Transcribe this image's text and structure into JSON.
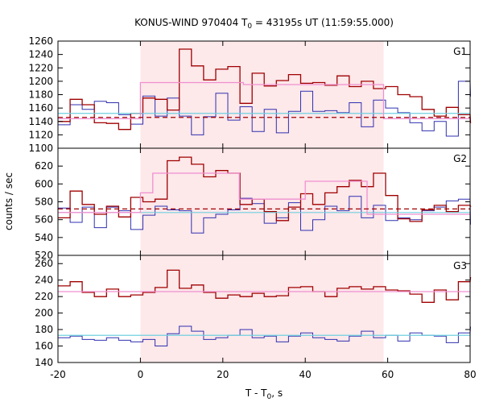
{
  "chart_data": {
    "type": "line",
    "title_main": "KONUS-WIND 970404 T",
    "title_sub": "0",
    "title_rest": " = 43195s UT (11:59:55.000)",
    "xlabel_main": "T - T",
    "xlabel_sub": "0",
    "xlabel_rest": ", s",
    "ylabel": "counts / sec",
    "xlim": [
      -20,
      80
    ],
    "x_ticks": [
      -20,
      0,
      20,
      40,
      60,
      80
    ],
    "x_tick_labels": [
      "-20",
      "0",
      "20",
      "40",
      "60",
      "80"
    ],
    "shaded_interval": [
      0,
      59
    ],
    "colors": {
      "shade": "#fde8ea",
      "red_series": "#a00000",
      "blue_series": "#3030b0",
      "pink_fit": "#f090d0",
      "cyan_fit": "#70d0e0",
      "dashed_bg": "#a00000"
    },
    "bin_start": -20,
    "bin_width": 2.944,
    "panels": [
      {
        "name": "G1",
        "ylim": [
          1100,
          1260
        ],
        "y_ticks": [
          1100,
          1120,
          1140,
          1160,
          1180,
          1200,
          1220,
          1240,
          1260
        ],
        "y_tick_labels": [
          "1100",
          "1120",
          "1140",
          "1160",
          "1180",
          "1200",
          "1220",
          "1240",
          "1260"
        ],
        "red": [
          1140,
          1173,
          1165,
          1138,
          1137,
          1128,
          1152,
          1175,
          1173,
          1157,
          1248,
          1223,
          1202,
          1218,
          1222,
          1167,
          1212,
          1193,
          1201,
          1210,
          1197,
          1198,
          1194,
          1208,
          1192,
          1200,
          1189,
          1192,
          1180,
          1177,
          1158,
          1148,
          1161,
          1150,
          1138
        ],
        "blue": [
          1135,
          1165,
          1158,
          1170,
          1168,
          1150,
          1136,
          1178,
          1148,
          1175,
          1148,
          1120,
          1147,
          1182,
          1142,
          1162,
          1125,
          1158,
          1123,
          1155,
          1185,
          1155,
          1156,
          1153,
          1168,
          1132,
          1172,
          1160,
          1153,
          1138,
          1126,
          1140,
          1118,
          1200,
          1178
        ],
        "pink_segments": [
          [
            -20,
            0,
            1144
          ],
          [
            0,
            25,
            1198
          ],
          [
            25,
            59,
            1195
          ],
          [
            59,
            80,
            1144
          ]
        ],
        "cyan_segments": [
          [
            -20,
            80,
            1152
          ]
        ],
        "dashed_segments": [
          [
            -20,
            80,
            1146
          ]
        ]
      },
      {
        "name": "G2",
        "ylim": [
          520,
          640
        ],
        "y_ticks": [
          520,
          540,
          560,
          580,
          600,
          620
        ],
        "y_tick_labels": [
          "520",
          "540",
          "560",
          "580",
          "600",
          "620"
        ],
        "red": [
          562,
          592,
          577,
          566,
          575,
          563,
          585,
          580,
          583,
          626,
          630,
          622,
          608,
          615,
          612,
          577,
          583,
          569,
          559,
          574,
          589,
          577,
          590,
          597,
          604,
          597,
          612,
          587,
          561,
          558,
          571,
          576,
          569,
          576,
          575
        ],
        "blue": [
          573,
          557,
          574,
          551,
          574,
          570,
          549,
          565,
          575,
          571,
          570,
          545,
          562,
          566,
          571,
          584,
          578,
          556,
          562,
          579,
          548,
          560,
          575,
          570,
          586,
          562,
          576,
          559,
          562,
          560,
          570,
          574,
          581,
          583,
          555
        ],
        "pink_segments": [
          [
            -20,
            0,
            568
          ],
          [
            0,
            3,
            590
          ],
          [
            3,
            24,
            612
          ],
          [
            24,
            40,
            583
          ],
          [
            40,
            55,
            603
          ],
          [
            55,
            80,
            566
          ]
        ],
        "cyan_segments": [
          [
            -20,
            80,
            568
          ]
        ],
        "dashed_segments": [
          [
            -20,
            80,
            572
          ]
        ]
      },
      {
        "name": "G3",
        "ylim": [
          140,
          270
        ],
        "y_ticks": [
          140,
          160,
          180,
          200,
          220,
          240,
          260
        ],
        "y_tick_labels": [
          "140",
          "160",
          "180",
          "200",
          "220",
          "240",
          "260"
        ],
        "red": [
          233,
          238,
          225,
          220,
          229,
          220,
          222,
          225,
          231,
          252,
          230,
          234,
          225,
          218,
          222,
          220,
          224,
          220,
          221,
          231,
          232,
          226,
          220,
          230,
          232,
          229,
          232,
          228,
          227,
          223,
          213,
          228,
          216,
          238,
          243
        ],
        "blue": [
          170,
          172,
          168,
          167,
          170,
          167,
          165,
          168,
          160,
          175,
          184,
          178,
          168,
          170,
          173,
          180,
          170,
          172,
          165,
          172,
          176,
          170,
          168,
          166,
          172,
          178,
          170,
          173,
          166,
          176,
          173,
          172,
          164,
          176,
          183
        ],
        "pink_segments": [
          [
            -20,
            80,
            226
          ]
        ],
        "cyan_segments": [
          [
            -20,
            80,
            173
          ]
        ],
        "dashed_segments": []
      }
    ]
  }
}
